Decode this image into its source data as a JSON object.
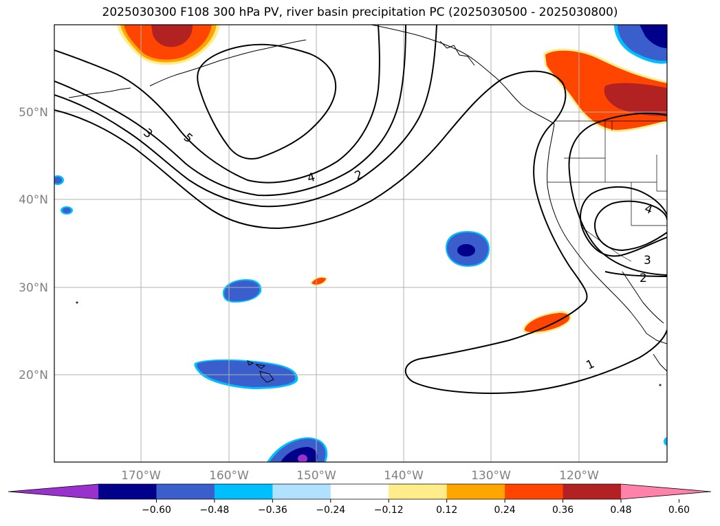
{
  "title": "2025030300 F108 300 hPa PV, river basin precipitation PC (2025030500 - 2025030800)",
  "lat_ticks": [
    "50°N",
    "40°N",
    "30°N",
    "20°N"
  ],
  "lon_ticks": [
    "170°W",
    "160°W",
    "150°W",
    "140°W",
    "130°W",
    "120°W"
  ],
  "contour_labels": [
    "5",
    "3",
    "4",
    "2",
    "4",
    "3",
    "2",
    "1"
  ],
  "colorbar": {
    "ticks": [
      "−0.60",
      "−0.48",
      "−0.36",
      "−0.24",
      "−0.12",
      "0.12",
      "0.24",
      "0.36",
      "0.48",
      "0.60"
    ],
    "colors": [
      "#9932cc",
      "#00008b",
      "#3a5fcd",
      "#00bfff",
      "#b0e2ff",
      "#ffffff",
      "#ffec8b",
      "#ffa500",
      "#ff4500",
      "#b22222",
      "#ff82ab"
    ]
  },
  "shading_colors": {
    "dark_blue": "#00008b",
    "mid_blue": "#3a5fcd",
    "light_blue": "#00bfff",
    "purple": "#9932cc",
    "dark_red": "#b22222",
    "orange_red": "#ff4500",
    "orange": "#ffa500",
    "yellow": "#ffec8b"
  }
}
